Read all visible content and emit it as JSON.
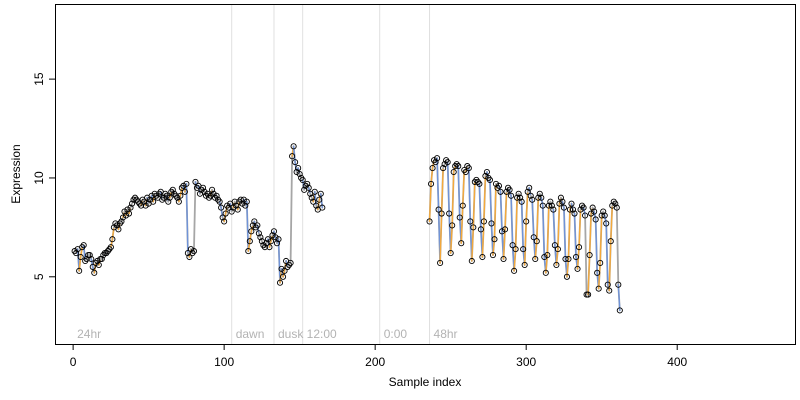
{
  "chart_data": {
    "type": "scatter",
    "xlabel": "Sample index",
    "ylabel": "Expression",
    "xlim": [
      -12,
      478
    ],
    "ylim": [
      1.6,
      18.8
    ],
    "x_ticks": [
      0,
      100,
      200,
      300,
      400
    ],
    "y_ticks": [
      5,
      10,
      15
    ],
    "grid": false,
    "legend": "none",
    "colors": {
      "points": "#000000",
      "trend_line": "#a6a6a6",
      "up_segment": "#f4a93b",
      "down_segment": "#6f93d8",
      "region_line": "#e0e0e0",
      "region_label": "#b3b3b3"
    },
    "regions": [
      {
        "label": "24hr",
        "start": 0
      },
      {
        "label": "dawn",
        "start": 105
      },
      {
        "label": "dusk",
        "start": 133
      },
      {
        "label": "12:00",
        "start": 152
      },
      {
        "label": "0:00",
        "start": 203
      },
      {
        "label": "48hr",
        "start": 236
      }
    ],
    "region_boundaries": [
      105,
      133,
      152,
      203,
      236
    ],
    "series": [
      {
        "x_start": 1,
        "values": [
          6.3,
          6.2,
          6.4,
          5.3,
          6.0,
          6.5,
          6.6,
          5.8,
          5.9,
          6.1,
          6.1,
          5.9,
          5.5,
          5.2,
          5.7,
          5.8,
          5.6,
          5.9,
          5.9,
          6.1,
          6.2,
          6.2,
          6.3,
          6.4,
          6.5,
          6.9,
          7.5,
          7.7,
          7.6,
          7.4,
          7.7,
          7.8,
          8.0,
          8.3,
          8.1,
          8.4,
          8.2,
          8.5,
          8.7,
          8.9,
          9.0,
          8.9,
          8.8,
          8.7,
          8.6,
          8.9,
          8.8,
          8.6,
          9.0,
          8.7,
          8.9,
          9.1,
          8.8,
          9.2,
          9.1,
          9.0,
          9.2,
          9.3,
          8.9,
          9.0,
          9.2,
          9.1,
          8.8,
          9.0,
          9.3,
          9.4,
          9.2,
          9.1,
          9.0,
          8.8,
          9.1,
          9.5,
          9.6,
          9.3,
          9.7,
          6.2,
          6.0,
          6.4,
          6.2,
          6.3,
          9.8,
          9.5,
          9.6,
          9.2,
          9.4,
          9.5,
          9.3,
          9.1,
          9.2,
          9.0,
          9.1,
          9.4,
          9.2,
          9.0,
          9.1,
          8.9,
          8.8,
          8.5,
          8.0,
          7.8,
          8.2,
          8.6,
          8.5,
          8.7,
          8.3,
          8.5,
          8.8,
          8.6,
          8.4,
          8.8,
          8.9,
          8.7,
          8.9,
          8.6,
          8.8,
          6.3,
          6.8,
          7.3,
          7.6,
          7.8,
          7.5,
          7.6,
          7.2,
          7.0,
          6.8,
          6.6,
          6.5,
          6.7,
          6.9,
          6.5,
          6.8,
          7.1,
          7.3,
          7.0,
          6.7,
          6.9,
          4.7,
          5.4,
          5.0,
          5.3,
          5.8,
          5.5,
          5.6,
          5.7,
          11.1,
          11.6,
          10.8,
          10.3,
          10.5,
          10.2,
          10.0,
          9.9,
          9.4,
          9.6,
          9.7,
          9.5,
          9.2,
          9.0,
          8.8,
          9.3,
          8.6,
          8.4,
          8.9,
          9.2,
          8.5
        ]
      },
      {
        "x_start": 236,
        "values": [
          7.8,
          9.7,
          10.5,
          10.9,
          10.8,
          11.0,
          8.4,
          5.7,
          8.2,
          10.5,
          10.7,
          10.9,
          10.8,
          8.2,
          6.2,
          7.6,
          10.3,
          10.6,
          10.7,
          10.6,
          8.0,
          6.7,
          8.6,
          10.4,
          10.3,
          10.6,
          10.5,
          7.8,
          5.8,
          7.5,
          9.8,
          9.9,
          9.8,
          9.7,
          7.4,
          6.0,
          7.8,
          10.1,
          10.3,
          10.0,
          9.9,
          7.7,
          6.1,
          6.9,
          9.7,
          9.5,
          9.6,
          9.3,
          7.3,
          5.9,
          7.4,
          9.3,
          9.5,
          9.4,
          9.1,
          6.6,
          5.3,
          6.4,
          9.0,
          9.2,
          9.0,
          8.8,
          6.4,
          5.6,
          7.8,
          9.3,
          9.5,
          9.1,
          8.9,
          7.0,
          5.9,
          6.8,
          9.0,
          9.2,
          9.0,
          8.6,
          6.0,
          5.2,
          6.1,
          8.6,
          8.8,
          8.6,
          8.4,
          6.6,
          5.6,
          6.4,
          8.7,
          9.0,
          8.8,
          8.5,
          5.9,
          5.0,
          5.9,
          8.4,
          8.7,
          8.4,
          8.2,
          6.0,
          5.4,
          6.5,
          8.4,
          8.6,
          8.5,
          8.1,
          4.1,
          4.1,
          6.1,
          8.2,
          8.5,
          8.3,
          7.9,
          5.2,
          4.4,
          5.7,
          8.1,
          8.3,
          8.1,
          7.7,
          4.6,
          4.3,
          6.8,
          8.6,
          8.8,
          8.7,
          8.5,
          4.6,
          3.3
        ]
      }
    ]
  }
}
